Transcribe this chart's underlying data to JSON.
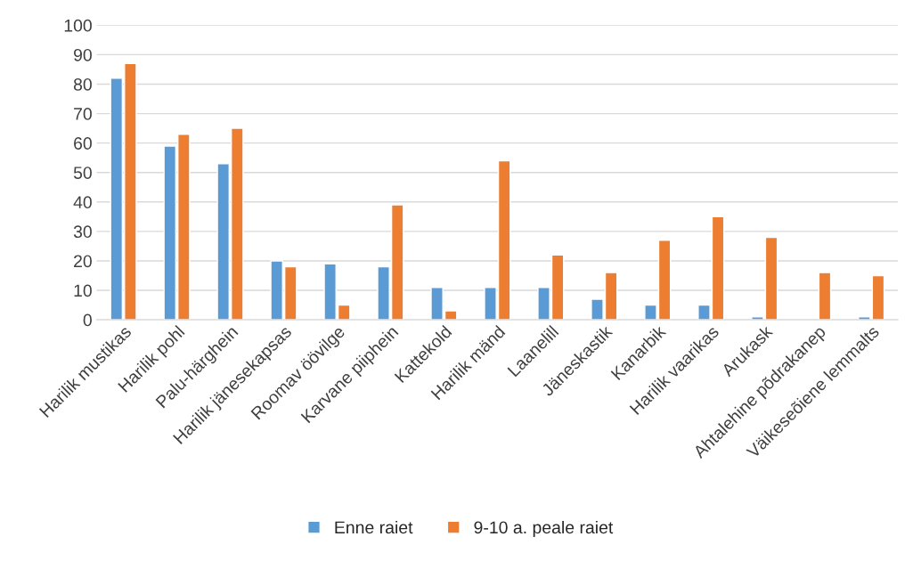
{
  "chart_data": {
    "type": "bar",
    "categories": [
      "Harilik mustikas",
      "Harilik pohl",
      "Palu-härghein",
      "Harilik jänesekapsas",
      "Roomav öövilge",
      "Karvane piiphein",
      "Kattekold",
      "Harilik mänd",
      "Laanelill",
      "Jäneskastik",
      "Kanarbik",
      "Harilik vaarikas",
      "Arukask",
      "Ahtalehine põdrakanep",
      "Väikeseõiene lemmalts"
    ],
    "series": [
      {
        "name": "Enne raiet",
        "color": "#5b9bd5",
        "values": [
          82,
          59,
          53,
          20,
          19,
          18,
          11,
          11,
          11,
          7,
          5,
          5,
          1,
          null,
          1
        ]
      },
      {
        "name": "9-10 a. peale raiet",
        "color": "#ed7d31",
        "values": [
          87,
          63,
          65,
          18,
          5,
          39,
          3,
          54,
          22,
          16,
          27,
          35,
          28,
          16,
          15
        ]
      }
    ],
    "ylim": [
      0,
      100
    ],
    "yticks": [
      0,
      10,
      20,
      30,
      40,
      50,
      60,
      70,
      80,
      90,
      100
    ],
    "grid": "y",
    "legend": "bottom"
  }
}
